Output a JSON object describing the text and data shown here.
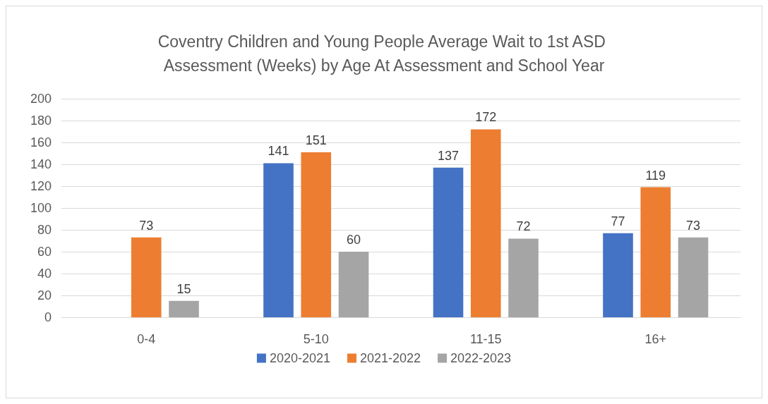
{
  "chart_data": {
    "type": "bar",
    "title": "Coventry Children and Young People Average Wait to 1st ASD Assessment (Weeks) by Age At Assessment and School Year",
    "categories": [
      "0-4",
      "5-10",
      "11-15",
      "16+"
    ],
    "series": [
      {
        "name": "2020-2021",
        "color": "#4472c4",
        "values": [
          null,
          141,
          137,
          77
        ]
      },
      {
        "name": "2021-2022",
        "color": "#ed7d31",
        "values": [
          73,
          151,
          172,
          119
        ]
      },
      {
        "name": "2022-2023",
        "color": "#a5a5a5",
        "values": [
          15,
          60,
          72,
          73
        ]
      }
    ],
    "ylim": [
      0,
      200
    ],
    "yticks": [
      0,
      20,
      40,
      60,
      80,
      100,
      120,
      140,
      160,
      180,
      200
    ],
    "grid": "y",
    "legend": "bottom",
    "data_labels": true
  }
}
